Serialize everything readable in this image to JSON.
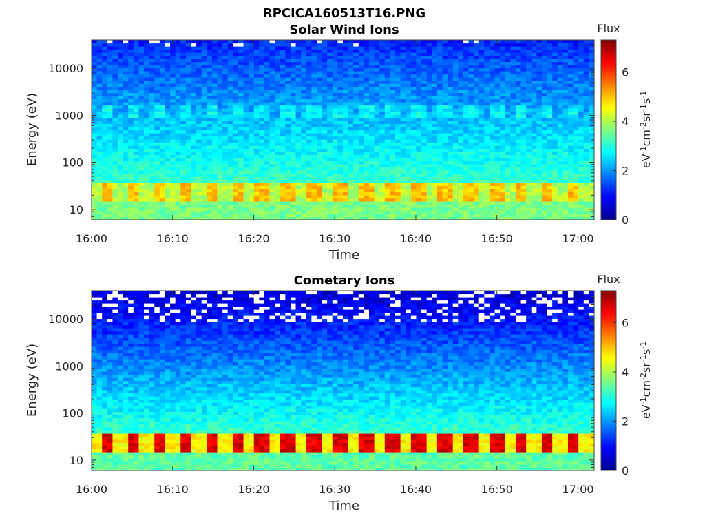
{
  "figure": {
    "title": "RPCICA160513T16.PNG"
  },
  "chart_data": [
    {
      "type": "heatmap",
      "title": "Solar Wind Ions",
      "xlabel": "Time",
      "ylabel": "Energy (eV)",
      "x_range": [
        "16:00",
        "17:02"
      ],
      "x_ticks": [
        "16:00",
        "16:10",
        "16:20",
        "16:30",
        "16:40",
        "16:50",
        "17:00"
      ],
      "y_scale": "log",
      "y_range": [
        6,
        40000
      ],
      "y_ticks": [
        "10",
        "100",
        "1000",
        "10000"
      ],
      "colorbar": {
        "title": "Flux",
        "label": "eV-1cm-2sr-1s-1",
        "range": [
          0,
          7.3
        ],
        "ticks": [
          "0",
          "2",
          "4",
          "6"
        ],
        "colormap": "jet"
      },
      "features": [
        {
          "energy_band": [
            15,
            35
          ],
          "flux": 4.8,
          "note": "periodic bright bands"
        },
        {
          "energy_band": [
            6,
            15
          ],
          "flux": 3.6
        },
        {
          "energy_band": [
            900,
            1600
          ],
          "flux": 2.6,
          "note": "faint periodic streaks"
        },
        {
          "energy_band": [
            5000,
            40000
          ],
          "flux": 1.3
        }
      ],
      "pulse_period_minutes": 3.2
    },
    {
      "type": "heatmap",
      "title": "Cometary Ions",
      "xlabel": "Time",
      "ylabel": "Energy (eV)",
      "x_range": [
        "16:00",
        "17:02"
      ],
      "x_ticks": [
        "16:00",
        "16:10",
        "16:20",
        "16:30",
        "16:40",
        "16:50",
        "17:00"
      ],
      "y_scale": "log",
      "y_range": [
        6,
        40000
      ],
      "y_ticks": [
        "10",
        "100",
        "1000",
        "10000"
      ],
      "colorbar": {
        "title": "Flux",
        "label": "eV-1cm-2sr-1s-1",
        "range": [
          0,
          7.3
        ],
        "ticks": [
          "0",
          "2",
          "4",
          "6"
        ],
        "colormap": "jet"
      },
      "features": [
        {
          "energy_band": [
            15,
            35
          ],
          "flux": 6.2,
          "note": "periodic hot bands"
        },
        {
          "energy_band": [
            6,
            15
          ],
          "flux": 3.4
        },
        {
          "energy_band": [
            100,
            1000
          ],
          "flux": 1.6
        },
        {
          "energy_band": [
            10000,
            40000
          ],
          "flux": 0.5,
          "note": "sparse, many empty bins"
        }
      ],
      "pulse_period_minutes": 3.2
    }
  ]
}
